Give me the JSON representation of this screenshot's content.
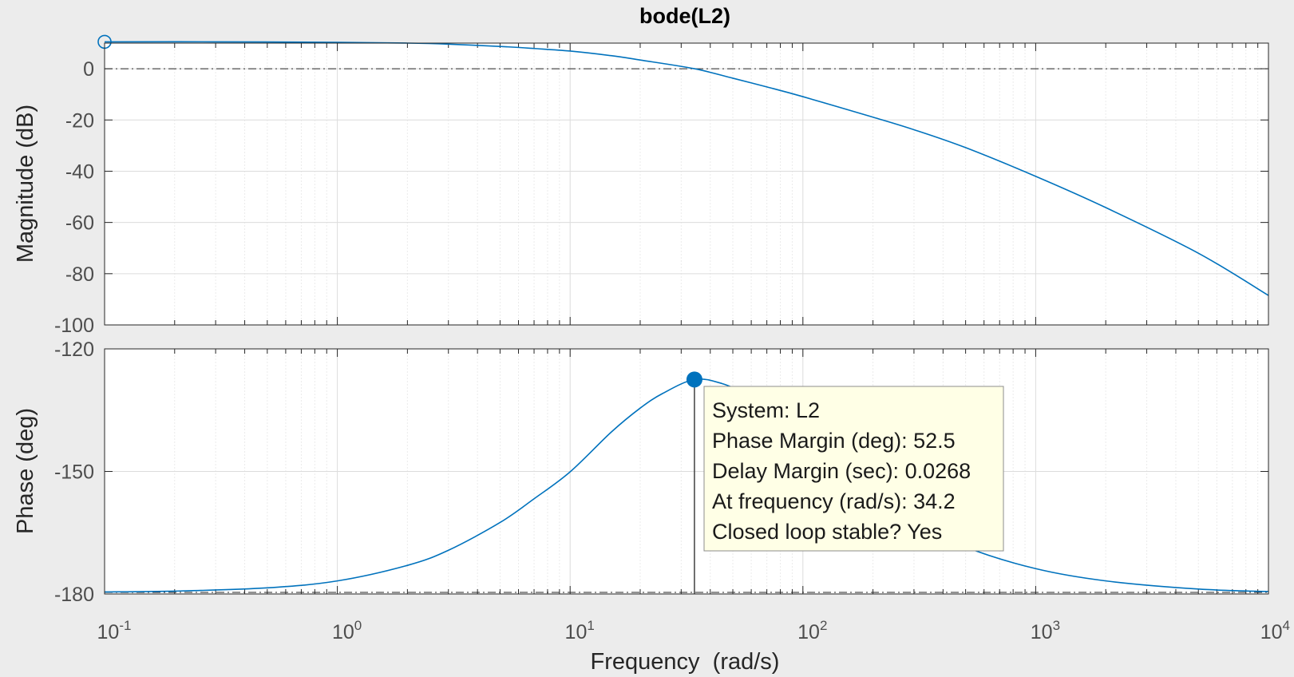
{
  "chart_data": [
    {
      "type": "line",
      "panel": "magnitude",
      "title": "bode(L2)",
      "ylabel": "Magnitude (dB)",
      "xlabel": "",
      "xscale": "log",
      "xlim": [
        0.1,
        10000
      ],
      "ylim": [
        -100,
        10
      ],
      "yticks": [
        0,
        -20,
        -40,
        -60,
        -80,
        -100
      ],
      "grid": true,
      "minor_grid": true,
      "line_color": "#0072bd",
      "reference_line_y": 0,
      "series": [
        {
          "x": [
            0.1,
            0.3,
            1,
            2,
            3,
            5,
            7,
            10,
            15,
            20,
            34.2,
            50,
            70,
            100,
            200,
            300,
            500,
            1000,
            2000,
            5000,
            10000
          ],
          "values": [
            10.5,
            10.5,
            10.3,
            10.0,
            9.6,
            8.7,
            7.9,
            6.9,
            5.1,
            3.4,
            0.0,
            -3.7,
            -7.1,
            -10.9,
            -18.9,
            -23.8,
            -30.8,
            -42.0,
            -54.2,
            -72.0,
            -88.5
          ]
        }
      ],
      "marker": {
        "x": 0.1,
        "y": 10.5,
        "style": "open-circle"
      }
    },
    {
      "type": "line",
      "panel": "phase",
      "ylabel": "Phase (deg)",
      "xlabel": "Frequency  (rad/s)",
      "xscale": "log",
      "xlim": [
        0.1,
        10000
      ],
      "ylim": [
        -180,
        -120
      ],
      "yticks": [
        -120,
        -150,
        -180
      ],
      "xticks": [
        {
          "base": "10",
          "exp": "-1",
          "value": 0.1
        },
        {
          "base": "10",
          "exp": "0",
          "value": 1
        },
        {
          "base": "10",
          "exp": "1",
          "value": 10
        },
        {
          "base": "10",
          "exp": "2",
          "value": 100
        },
        {
          "base": "10",
          "exp": "3",
          "value": 1000
        },
        {
          "base": "10",
          "exp": "4",
          "value": 10000
        }
      ],
      "grid": true,
      "minor_grid": true,
      "line_color": "#0072bd",
      "reference_line_y": -180,
      "series": [
        {
          "x": [
            0.1,
            0.2,
            0.5,
            1,
            2,
            3,
            5,
            7,
            10,
            15,
            20,
            25,
            34.2,
            45,
            60,
            80,
            100,
            150,
            200,
            300,
            500,
            1000,
            2000,
            5000,
            10000
          ],
          "values": [
            -179.5,
            -179.3,
            -178.5,
            -176.8,
            -173.0,
            -169.3,
            -162.5,
            -156.7,
            -150.1,
            -140.4,
            -134.5,
            -130.9,
            -127.5,
            -128.5,
            -131.7,
            -136.3,
            -140.6,
            -148.0,
            -155.0,
            -162.0,
            -168.5,
            -173.8,
            -176.8,
            -178.8,
            -179.4
          ]
        }
      ],
      "marker": {
        "x": 34.2,
        "y": -127.5,
        "style": "filled-circle",
        "stem_to": -180
      },
      "datatip": {
        "lines": [
          "System: L2",
          "Phase Margin (deg): 52.5",
          "Delay Margin (sec): 0.0268",
          "At frequency (rad/s): 34.2",
          "Closed loop stable? Yes"
        ],
        "background": "#ffffe6"
      }
    }
  ]
}
